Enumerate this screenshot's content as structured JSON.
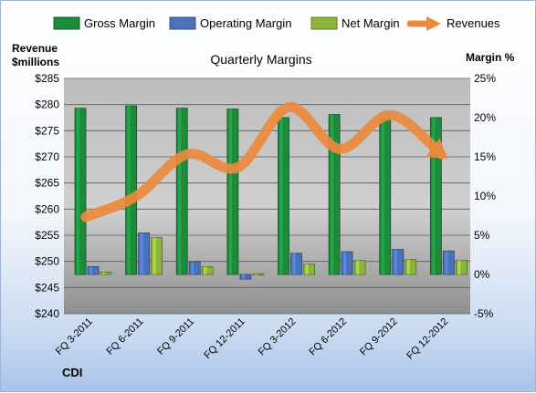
{
  "chart_data": {
    "type": "bar",
    "title": "Quarterly Margins",
    "y_left_label": [
      "Revenue",
      "$millions"
    ],
    "y_right_label": "Margin %",
    "footer": "CDI",
    "categories": [
      "FQ 3-2011",
      "FQ 6-2011",
      "FQ 9-2011",
      "FQ 12-2011",
      "FQ 3-2012",
      "FQ 6-2012",
      "FQ 9-2012",
      "FQ 12-2012"
    ],
    "y_left": {
      "min": 240,
      "max": 285,
      "step": 5,
      "prefix": "$"
    },
    "y_right": {
      "min": -5,
      "max": 25,
      "step": 5,
      "suffix": "%"
    },
    "legend_position": "top",
    "grid": true,
    "series": [
      {
        "name": "Gross Margin",
        "axis": "right",
        "type": "bar",
        "color": "#1e8a3c",
        "values": [
          21.2,
          21.5,
          21.2,
          21.1,
          20.0,
          20.4,
          19.8,
          20.0
        ]
      },
      {
        "name": "Operating Margin",
        "axis": "right",
        "type": "bar",
        "color": "#4a72b8",
        "values": [
          1.0,
          5.3,
          1.6,
          -0.6,
          2.7,
          2.9,
          3.2,
          3.0
        ]
      },
      {
        "name": "Net Margin",
        "axis": "right",
        "type": "bar",
        "color": "#8cb43c",
        "values": [
          0.3,
          4.7,
          1.0,
          0.1,
          1.3,
          1.8,
          1.9,
          1.8
        ]
      },
      {
        "name": "Revenues",
        "axis": "left",
        "type": "line",
        "color": "#ec8a3c",
        "values": [
          258.5,
          262.5,
          270.5,
          268.0,
          279.5,
          271.5,
          278.0,
          270.5
        ]
      }
    ]
  }
}
